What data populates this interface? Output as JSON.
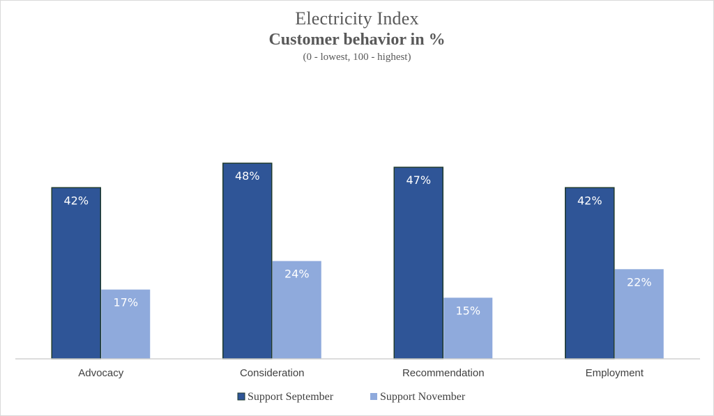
{
  "chart_data": {
    "type": "bar",
    "title": "Electricity Index",
    "subtitle": "Customer behavior in %",
    "note": "(0 - lowest, 100 - highest)",
    "categories": [
      "Advocacy",
      "Consideration",
      "Recommendation",
      "Employment"
    ],
    "series": [
      {
        "name": "Support September",
        "values": [
          42,
          48,
          47,
          42
        ],
        "labels": [
          "42%",
          "48%",
          "47%",
          "42%"
        ],
        "color": "#2f5597"
      },
      {
        "name": "Support November",
        "values": [
          17,
          24,
          15,
          22
        ],
        "labels": [
          "17%",
          "24%",
          "15%",
          "22%"
        ],
        "color": "#8faadc"
      }
    ],
    "ylim": [
      0,
      50
    ],
    "grid": false,
    "legend_position": "bottom"
  }
}
